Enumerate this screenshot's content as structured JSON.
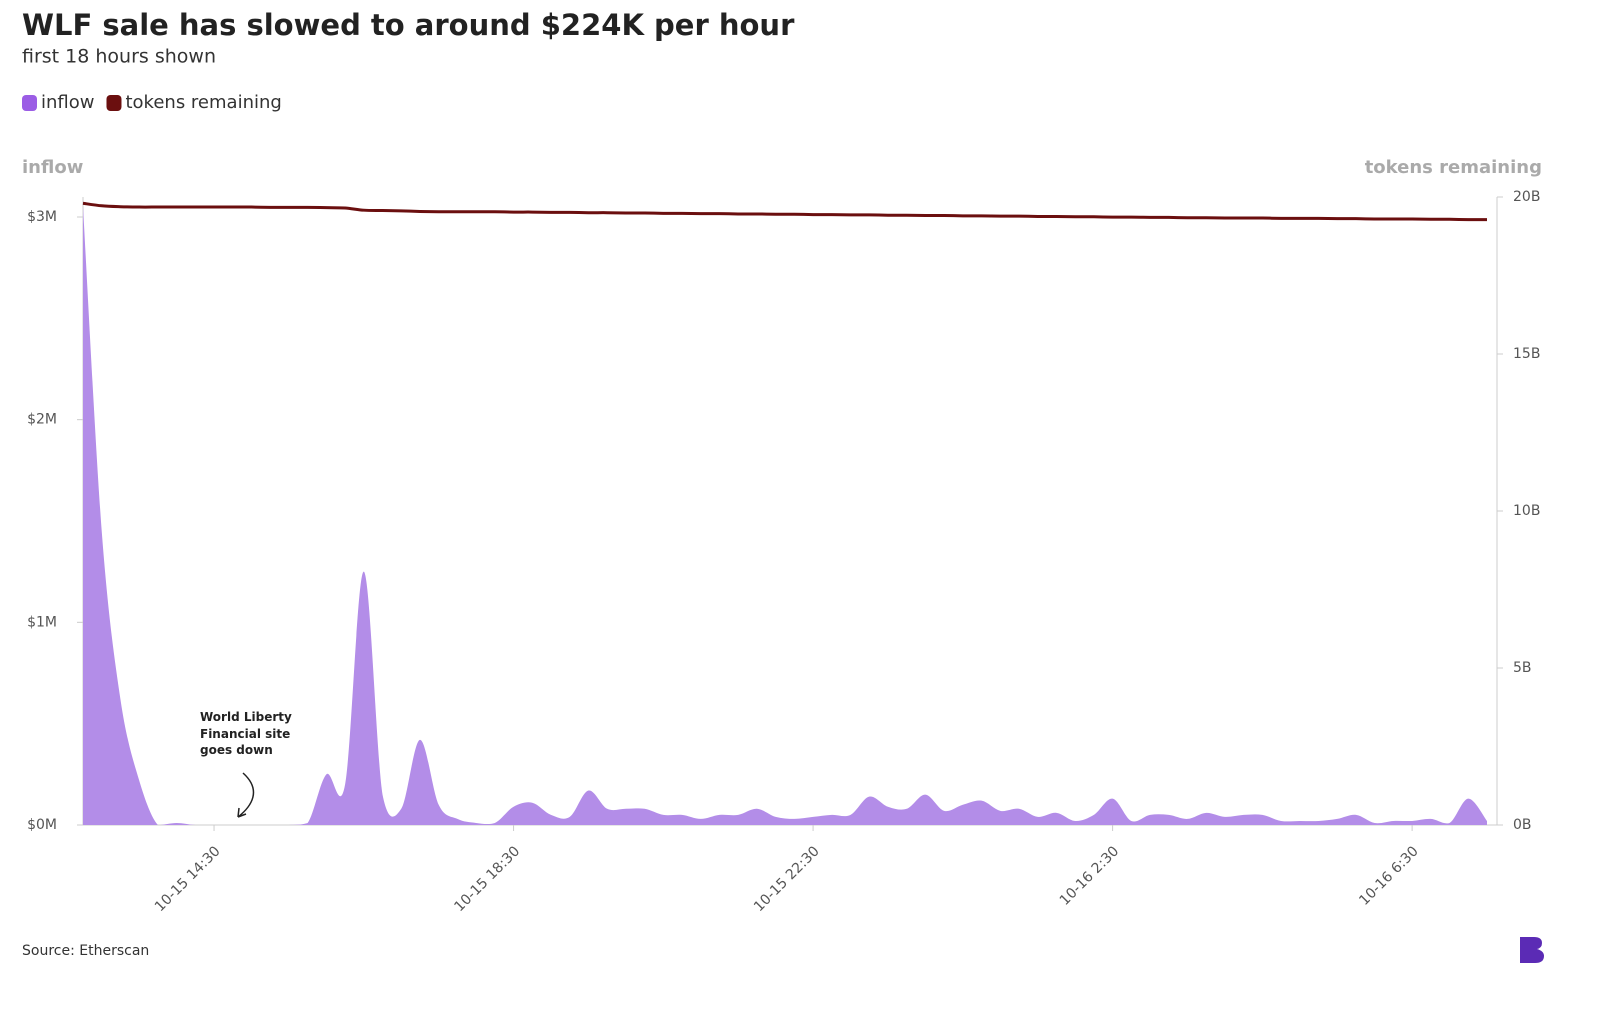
{
  "chart_data": {
    "type": "area-line",
    "title": "WLF sale has slowed to around $224K per hour",
    "subtitle": "first 18 hours shown",
    "y_label": "inflow",
    "y2_label": "tokens remaining",
    "source": "Source: Etherscan",
    "annotation": "World Liberty Financial site goes down",
    "legend": "top-left",
    "x": [
      "10-15 12:45",
      "10-15 13:00",
      "10-15 13:15",
      "10-15 13:30",
      "10-15 13:45",
      "10-15 14:00",
      "10-15 14:15",
      "10-15 14:30",
      "10-15 14:45",
      "10-15 15:00",
      "10-15 15:15",
      "10-15 15:30",
      "10-15 15:45",
      "10-15 16:00",
      "10-15 16:15",
      "10-15 16:30",
      "10-15 16:45",
      "10-15 17:00",
      "10-15 17:15",
      "10-15 17:30",
      "10-15 17:45",
      "10-15 18:00",
      "10-15 18:15",
      "10-15 18:30",
      "10-15 18:45",
      "10-15 19:00",
      "10-15 19:15",
      "10-15 19:30",
      "10-15 19:45",
      "10-15 20:00",
      "10-15 20:15",
      "10-15 20:30",
      "10-15 20:45",
      "10-15 21:00",
      "10-15 21:15",
      "10-15 21:30",
      "10-15 21:45",
      "10-15 22:00",
      "10-15 22:15",
      "10-15 22:30",
      "10-15 22:45",
      "10-15 23:00",
      "10-15 23:15",
      "10-15 23:30",
      "10-15 23:45",
      "10-16 0:00",
      "10-16 0:15",
      "10-16 0:30",
      "10-16 0:45",
      "10-16 1:00",
      "10-16 1:15",
      "10-16 1:30",
      "10-16 1:45",
      "10-16 2:00",
      "10-16 2:15",
      "10-16 2:30",
      "10-16 2:45",
      "10-16 3:00",
      "10-16 3:15",
      "10-16 3:30",
      "10-16 3:45",
      "10-16 4:00",
      "10-16 4:15",
      "10-16 4:30",
      "10-16 4:45",
      "10-16 5:00",
      "10-16 5:15",
      "10-16 5:30",
      "10-16 5:45",
      "10-16 6:00",
      "10-16 6:15",
      "10-16 6:30",
      "10-16 6:45",
      "10-16 7:00",
      "10-16 7:15",
      "10-16 7:30"
    ],
    "xlim": [
      "10-15 12:45",
      "10-16 7:30"
    ],
    "xticks": [
      "10-15 14:30",
      "10-15 18:30",
      "10-15 22:30",
      "10-16 2:30",
      "10-16 6:30"
    ],
    "ylim": [
      0,
      3.1
    ],
    "yticks": [
      {
        "value": 0,
        "label": "$0M"
      },
      {
        "value": 1,
        "label": "$1M"
      },
      {
        "value": 2,
        "label": "$2M"
      },
      {
        "value": 3,
        "label": "$3M"
      }
    ],
    "y2lim": [
      0,
      20
    ],
    "y2ticks": [
      {
        "value": 0,
        "label": "0B"
      },
      {
        "value": 5,
        "label": "5B"
      },
      {
        "value": 10,
        "label": "10B"
      },
      {
        "value": 15,
        "label": "15B"
      },
      {
        "value": 20,
        "label": "20B"
      }
    ],
    "series": [
      {
        "name": "inflow",
        "type": "area",
        "color": "#b38de8",
        "legend_color": "#9b5de5",
        "values": [
          3.05,
          1.45,
          0.62,
          0.22,
          0,
          0.01,
          0,
          0,
          0,
          0,
          0,
          0,
          0.01,
          0.25,
          0.2,
          1.25,
          0.15,
          0.08,
          0.42,
          0.1,
          0.03,
          0.01,
          0.01,
          0.09,
          0.11,
          0.05,
          0.04,
          0.17,
          0.08,
          0.08,
          0.08,
          0.05,
          0.05,
          0.03,
          0.05,
          0.05,
          0.08,
          0.04,
          0.03,
          0.04,
          0.05,
          0.05,
          0.14,
          0.09,
          0.08,
          0.15,
          0.07,
          0.1,
          0.12,
          0.07,
          0.08,
          0.04,
          0.06,
          0.02,
          0.05,
          0.13,
          0.02,
          0.05,
          0.05,
          0.03,
          0.06,
          0.04,
          0.05,
          0.05,
          0.02,
          0.02,
          0.02,
          0.03,
          0.05,
          0.01,
          0.02,
          0.02,
          0.03,
          0.01,
          0.13,
          0.02
        ]
      },
      {
        "name": "tokens remaining",
        "type": "line",
        "axis": "y2",
        "color": "#6b0f0f",
        "legend_color": "#6b0f0f",
        "values": [
          19.8,
          19.72,
          19.69,
          19.68,
          19.68,
          19.68,
          19.68,
          19.68,
          19.68,
          19.68,
          19.67,
          19.67,
          19.67,
          19.66,
          19.65,
          19.58,
          19.57,
          19.56,
          19.54,
          19.53,
          19.53,
          19.53,
          19.53,
          19.52,
          19.52,
          19.51,
          19.51,
          19.5,
          19.5,
          19.49,
          19.49,
          19.48,
          19.48,
          19.47,
          19.47,
          19.46,
          19.46,
          19.45,
          19.45,
          19.44,
          19.44,
          19.43,
          19.43,
          19.42,
          19.42,
          19.41,
          19.41,
          19.4,
          19.4,
          19.39,
          19.39,
          19.38,
          19.38,
          19.37,
          19.37,
          19.36,
          19.36,
          19.35,
          19.35,
          19.34,
          19.34,
          19.33,
          19.33,
          19.33,
          19.32,
          19.32,
          19.32,
          19.31,
          19.31,
          19.3,
          19.3,
          19.3,
          19.29,
          19.29,
          19.28,
          19.28
        ]
      }
    ]
  }
}
